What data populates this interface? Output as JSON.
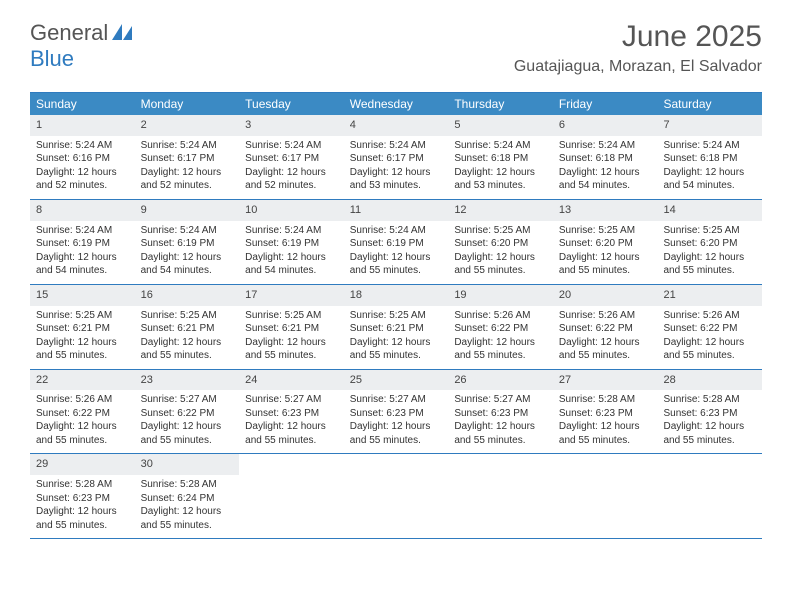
{
  "logo": {
    "part1": "General",
    "part2": "Blue"
  },
  "title": "June 2025",
  "location": "Guatajiagua, Morazan, El Salvador",
  "colors": {
    "header_bg": "#3b8ac4",
    "border": "#2f7bbf",
    "daynum_bg": "#eceef0",
    "text": "#333333",
    "title_text": "#555555"
  },
  "weekdays": [
    "Sunday",
    "Monday",
    "Tuesday",
    "Wednesday",
    "Thursday",
    "Friday",
    "Saturday"
  ],
  "days": [
    {
      "n": "1",
      "sr": "Sunrise: 5:24 AM",
      "ss": "Sunset: 6:16 PM",
      "dl": "Daylight: 12 hours and 52 minutes."
    },
    {
      "n": "2",
      "sr": "Sunrise: 5:24 AM",
      "ss": "Sunset: 6:17 PM",
      "dl": "Daylight: 12 hours and 52 minutes."
    },
    {
      "n": "3",
      "sr": "Sunrise: 5:24 AM",
      "ss": "Sunset: 6:17 PM",
      "dl": "Daylight: 12 hours and 52 minutes."
    },
    {
      "n": "4",
      "sr": "Sunrise: 5:24 AM",
      "ss": "Sunset: 6:17 PM",
      "dl": "Daylight: 12 hours and 53 minutes."
    },
    {
      "n": "5",
      "sr": "Sunrise: 5:24 AM",
      "ss": "Sunset: 6:18 PM",
      "dl": "Daylight: 12 hours and 53 minutes."
    },
    {
      "n": "6",
      "sr": "Sunrise: 5:24 AM",
      "ss": "Sunset: 6:18 PM",
      "dl": "Daylight: 12 hours and 54 minutes."
    },
    {
      "n": "7",
      "sr": "Sunrise: 5:24 AM",
      "ss": "Sunset: 6:18 PM",
      "dl": "Daylight: 12 hours and 54 minutes."
    },
    {
      "n": "8",
      "sr": "Sunrise: 5:24 AM",
      "ss": "Sunset: 6:19 PM",
      "dl": "Daylight: 12 hours and 54 minutes."
    },
    {
      "n": "9",
      "sr": "Sunrise: 5:24 AM",
      "ss": "Sunset: 6:19 PM",
      "dl": "Daylight: 12 hours and 54 minutes."
    },
    {
      "n": "10",
      "sr": "Sunrise: 5:24 AM",
      "ss": "Sunset: 6:19 PM",
      "dl": "Daylight: 12 hours and 54 minutes."
    },
    {
      "n": "11",
      "sr": "Sunrise: 5:24 AM",
      "ss": "Sunset: 6:19 PM",
      "dl": "Daylight: 12 hours and 55 minutes."
    },
    {
      "n": "12",
      "sr": "Sunrise: 5:25 AM",
      "ss": "Sunset: 6:20 PM",
      "dl": "Daylight: 12 hours and 55 minutes."
    },
    {
      "n": "13",
      "sr": "Sunrise: 5:25 AM",
      "ss": "Sunset: 6:20 PM",
      "dl": "Daylight: 12 hours and 55 minutes."
    },
    {
      "n": "14",
      "sr": "Sunrise: 5:25 AM",
      "ss": "Sunset: 6:20 PM",
      "dl": "Daylight: 12 hours and 55 minutes."
    },
    {
      "n": "15",
      "sr": "Sunrise: 5:25 AM",
      "ss": "Sunset: 6:21 PM",
      "dl": "Daylight: 12 hours and 55 minutes."
    },
    {
      "n": "16",
      "sr": "Sunrise: 5:25 AM",
      "ss": "Sunset: 6:21 PM",
      "dl": "Daylight: 12 hours and 55 minutes."
    },
    {
      "n": "17",
      "sr": "Sunrise: 5:25 AM",
      "ss": "Sunset: 6:21 PM",
      "dl": "Daylight: 12 hours and 55 minutes."
    },
    {
      "n": "18",
      "sr": "Sunrise: 5:25 AM",
      "ss": "Sunset: 6:21 PM",
      "dl": "Daylight: 12 hours and 55 minutes."
    },
    {
      "n": "19",
      "sr": "Sunrise: 5:26 AM",
      "ss": "Sunset: 6:22 PM",
      "dl": "Daylight: 12 hours and 55 minutes."
    },
    {
      "n": "20",
      "sr": "Sunrise: 5:26 AM",
      "ss": "Sunset: 6:22 PM",
      "dl": "Daylight: 12 hours and 55 minutes."
    },
    {
      "n": "21",
      "sr": "Sunrise: 5:26 AM",
      "ss": "Sunset: 6:22 PM",
      "dl": "Daylight: 12 hours and 55 minutes."
    },
    {
      "n": "22",
      "sr": "Sunrise: 5:26 AM",
      "ss": "Sunset: 6:22 PM",
      "dl": "Daylight: 12 hours and 55 minutes."
    },
    {
      "n": "23",
      "sr": "Sunrise: 5:27 AM",
      "ss": "Sunset: 6:22 PM",
      "dl": "Daylight: 12 hours and 55 minutes."
    },
    {
      "n": "24",
      "sr": "Sunrise: 5:27 AM",
      "ss": "Sunset: 6:23 PM",
      "dl": "Daylight: 12 hours and 55 minutes."
    },
    {
      "n": "25",
      "sr": "Sunrise: 5:27 AM",
      "ss": "Sunset: 6:23 PM",
      "dl": "Daylight: 12 hours and 55 minutes."
    },
    {
      "n": "26",
      "sr": "Sunrise: 5:27 AM",
      "ss": "Sunset: 6:23 PM",
      "dl": "Daylight: 12 hours and 55 minutes."
    },
    {
      "n": "27",
      "sr": "Sunrise: 5:28 AM",
      "ss": "Sunset: 6:23 PM",
      "dl": "Daylight: 12 hours and 55 minutes."
    },
    {
      "n": "28",
      "sr": "Sunrise: 5:28 AM",
      "ss": "Sunset: 6:23 PM",
      "dl": "Daylight: 12 hours and 55 minutes."
    },
    {
      "n": "29",
      "sr": "Sunrise: 5:28 AM",
      "ss": "Sunset: 6:23 PM",
      "dl": "Daylight: 12 hours and 55 minutes."
    },
    {
      "n": "30",
      "sr": "Sunrise: 5:28 AM",
      "ss": "Sunset: 6:24 PM",
      "dl": "Daylight: 12 hours and 55 minutes."
    }
  ]
}
